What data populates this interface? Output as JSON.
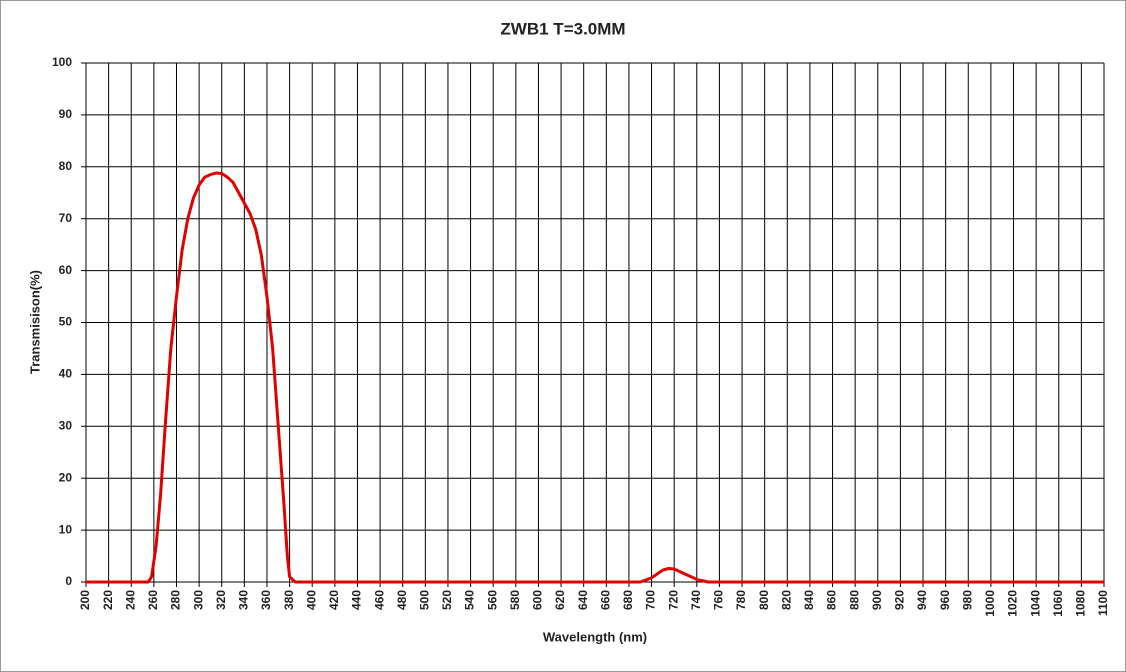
{
  "chart_data": {
    "type": "line",
    "title": "ZWB1 T=3.0MM",
    "x_label": "Wavelength (nm)",
    "y_label": "Transmisison(%)",
    "x": [
      200,
      255,
      258,
      262,
      266,
      270,
      275,
      280,
      285,
      290,
      295,
      300,
      305,
      310,
      315,
      320,
      325,
      330,
      335,
      340,
      345,
      350,
      355,
      360,
      365,
      370,
      375,
      378,
      380,
      385,
      690,
      700,
      710,
      715,
      720,
      730,
      740,
      750,
      1100
    ],
    "values": [
      0,
      0,
      1,
      7,
      17,
      30,
      45,
      55,
      64,
      70,
      74,
      76.5,
      78,
      78.5,
      78.8,
      78.7,
      78,
      77,
      75,
      73,
      71,
      68,
      63,
      55,
      45,
      30,
      15,
      5,
      1,
      0,
      0,
      0.8,
      2.3,
      2.6,
      2.5,
      1.5,
      0.5,
      0,
      0
    ],
    "color": "#e00000",
    "xlim": [
      200,
      1100
    ],
    "xticks": [
      200,
      220,
      240,
      260,
      280,
      300,
      320,
      340,
      360,
      380,
      400,
      420,
      440,
      460,
      480,
      500,
      520,
      540,
      560,
      580,
      600,
      620,
      640,
      660,
      680,
      700,
      720,
      740,
      760,
      780,
      800,
      820,
      840,
      860,
      880,
      900,
      920,
      940,
      960,
      980,
      1000,
      1020,
      1040,
      1060,
      1080,
      1100
    ],
    "ylim": [
      0,
      100
    ],
    "yticks": [
      0,
      10,
      20,
      30,
      40,
      50,
      60,
      70,
      80,
      90,
      100
    ],
    "grid": true
  }
}
